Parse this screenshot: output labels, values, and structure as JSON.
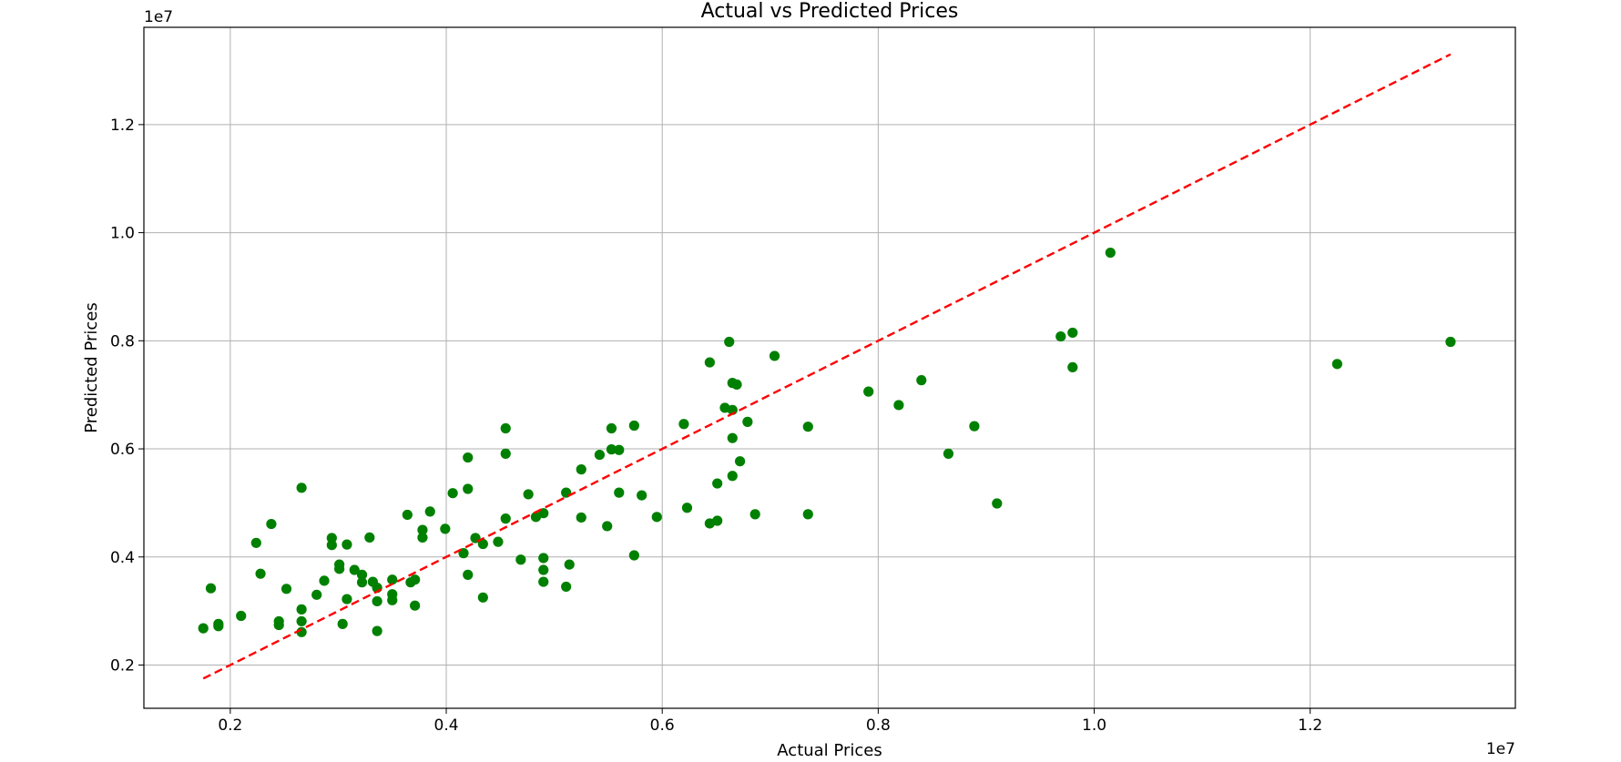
{
  "chart_data": {
    "type": "scatter",
    "title": "Actual vs Predicted Prices",
    "xlabel": "Actual Prices",
    "ylabel": "Predicted Prices",
    "x_offset_label": "1e7",
    "y_offset_label": "1e7",
    "xlim": [
      0.12,
      1.39
    ],
    "ylim": [
      0.12,
      1.38
    ],
    "x_ticks": [
      0.2,
      0.4,
      0.6,
      0.8,
      1.0,
      1.2
    ],
    "y_ticks": [
      0.2,
      0.4,
      0.6,
      0.8,
      1.0,
      1.2
    ],
    "x_tick_labels": [
      "0.2",
      "0.4",
      "0.6",
      "0.8",
      "1.0",
      "1.2"
    ],
    "y_tick_labels": [
      "0.2",
      "0.4",
      "0.6",
      "0.8",
      "1.0",
      "1.2"
    ],
    "grid": true,
    "point_color": "#008000",
    "reference_line": {
      "style": "dashed",
      "color": "#ff0000",
      "x": [
        0.175,
        1.33
      ],
      "y": [
        0.175,
        1.33
      ]
    },
    "points": [
      [
        0.175,
        0.268
      ],
      [
        0.182,
        0.342
      ],
      [
        0.189,
        0.276
      ],
      [
        0.189,
        0.272
      ],
      [
        0.21,
        0.291
      ],
      [
        0.224,
        0.426
      ],
      [
        0.228,
        0.369
      ],
      [
        0.238,
        0.461
      ],
      [
        0.245,
        0.281
      ],
      [
        0.245,
        0.274
      ],
      [
        0.252,
        0.341
      ],
      [
        0.266,
        0.528
      ],
      [
        0.266,
        0.303
      ],
      [
        0.266,
        0.281
      ],
      [
        0.266,
        0.261
      ],
      [
        0.28,
        0.33
      ],
      [
        0.287,
        0.356
      ],
      [
        0.294,
        0.435
      ],
      [
        0.294,
        0.422
      ],
      [
        0.301,
        0.386
      ],
      [
        0.301,
        0.378
      ],
      [
        0.304,
        0.276
      ],
      [
        0.308,
        0.423
      ],
      [
        0.308,
        0.322
      ],
      [
        0.315,
        0.376
      ],
      [
        0.322,
        0.367
      ],
      [
        0.322,
        0.353
      ],
      [
        0.329,
        0.436
      ],
      [
        0.332,
        0.354
      ],
      [
        0.336,
        0.343
      ],
      [
        0.336,
        0.318
      ],
      [
        0.336,
        0.263
      ],
      [
        0.35,
        0.358
      ],
      [
        0.35,
        0.331
      ],
      [
        0.35,
        0.32
      ],
      [
        0.364,
        0.478
      ],
      [
        0.367,
        0.353
      ],
      [
        0.371,
        0.358
      ],
      [
        0.371,
        0.31
      ],
      [
        0.378,
        0.45
      ],
      [
        0.378,
        0.436
      ],
      [
        0.385,
        0.484
      ],
      [
        0.399,
        0.452
      ],
      [
        0.406,
        0.518
      ],
      [
        0.416,
        0.407
      ],
      [
        0.42,
        0.584
      ],
      [
        0.42,
        0.526
      ],
      [
        0.42,
        0.367
      ],
      [
        0.427,
        0.435
      ],
      [
        0.434,
        0.424
      ],
      [
        0.434,
        0.325
      ],
      [
        0.448,
        0.428
      ],
      [
        0.455,
        0.638
      ],
      [
        0.455,
        0.591
      ],
      [
        0.455,
        0.471
      ],
      [
        0.469,
        0.395
      ],
      [
        0.476,
        0.516
      ],
      [
        0.483,
        0.474
      ],
      [
        0.49,
        0.481
      ],
      [
        0.49,
        0.398
      ],
      [
        0.49,
        0.376
      ],
      [
        0.49,
        0.354
      ],
      [
        0.511,
        0.519
      ],
      [
        0.511,
        0.345
      ],
      [
        0.514,
        0.386
      ],
      [
        0.525,
        0.562
      ],
      [
        0.525,
        0.473
      ],
      [
        0.542,
        0.589
      ],
      [
        0.549,
        0.457
      ],
      [
        0.553,
        0.638
      ],
      [
        0.553,
        0.599
      ],
      [
        0.56,
        0.598
      ],
      [
        0.56,
        0.519
      ],
      [
        0.574,
        0.643
      ],
      [
        0.574,
        0.403
      ],
      [
        0.581,
        0.514
      ],
      [
        0.595,
        0.474
      ],
      [
        0.62,
        0.646
      ],
      [
        0.623,
        0.491
      ],
      [
        0.644,
        0.76
      ],
      [
        0.644,
        0.462
      ],
      [
        0.651,
        0.536
      ],
      [
        0.651,
        0.467
      ],
      [
        0.658,
        0.676
      ],
      [
        0.662,
        0.798
      ],
      [
        0.665,
        0.722
      ],
      [
        0.665,
        0.672
      ],
      [
        0.665,
        0.62
      ],
      [
        0.665,
        0.55
      ],
      [
        0.669,
        0.719
      ],
      [
        0.672,
        0.577
      ],
      [
        0.679,
        0.65
      ],
      [
        0.686,
        0.479
      ],
      [
        0.704,
        0.772
      ],
      [
        0.735,
        0.641
      ],
      [
        0.735,
        0.479
      ],
      [
        0.791,
        0.706
      ],
      [
        0.819,
        0.681
      ],
      [
        0.84,
        0.727
      ],
      [
        0.865,
        0.591
      ],
      [
        0.889,
        0.642
      ],
      [
        0.91,
        0.499
      ],
      [
        0.969,
        0.808
      ],
      [
        0.98,
        0.815
      ],
      [
        0.98,
        0.751
      ],
      [
        1.015,
        0.963
      ],
      [
        1.225,
        0.757
      ],
      [
        1.33,
        0.798
      ]
    ]
  }
}
